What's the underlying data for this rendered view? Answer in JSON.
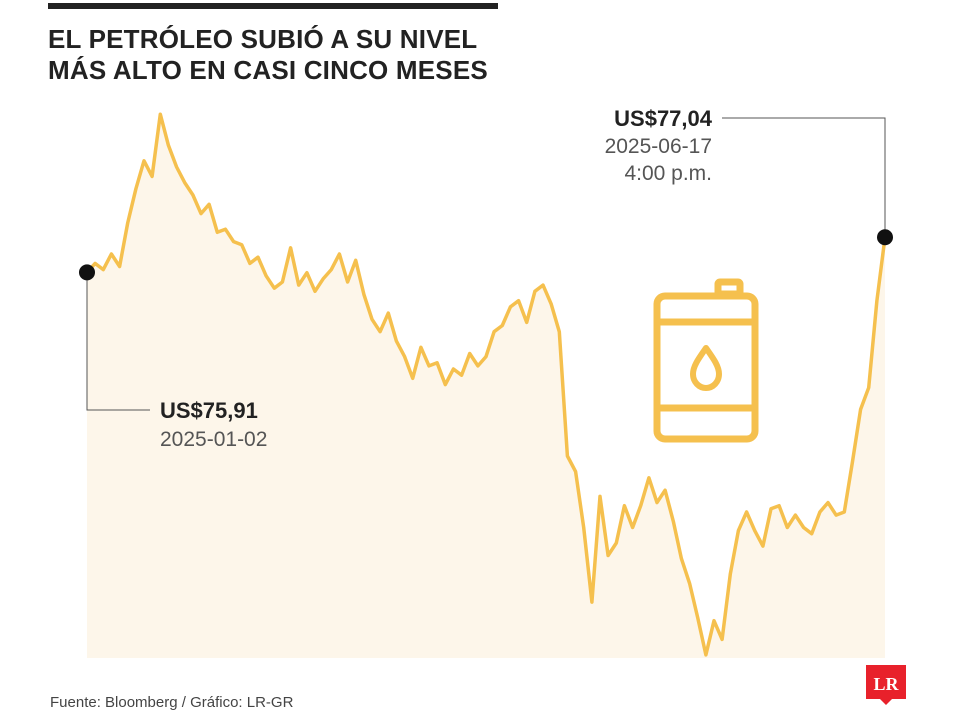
{
  "title": {
    "line1": "EL PETRÓLEO SUBIÓ A SU NIVEL",
    "line2": "MÁS ALTO EN CASI CINCO MESES"
  },
  "annotations": {
    "start": {
      "value": "US$75,91",
      "date": "2025-01-02"
    },
    "end": {
      "value": "US$77,04",
      "date": "2025-06-17",
      "time": "4:00 p.m."
    }
  },
  "footer": "Fuente: Bloomberg / Gráfico: LR-GR",
  "logo_text": "LR",
  "colors": {
    "line": "#F5C04E",
    "area": "#FDF6EA",
    "icon": "#F5C04E",
    "logo": "#E8212B",
    "text": "#222222"
  },
  "icon": "oil-barrel-icon",
  "chart_data": {
    "type": "area",
    "title": "EL PETRÓLEO SUBIÓ A SU NIVEL MÁS ALTO EN CASI CINCO MESES",
    "xlabel": "",
    "ylabel": "",
    "x_range": [
      "2025-01-02",
      "2025-06-17"
    ],
    "ylim": [
      63.5,
      81.2
    ],
    "grid": false,
    "legend": "none",
    "values": [
      75.91,
      76.2,
      76.0,
      76.5,
      76.1,
      77.5,
      78.6,
      79.5,
      79.0,
      81.0,
      80.0,
      79.3,
      78.8,
      78.4,
      77.8,
      78.1,
      77.2,
      77.3,
      76.9,
      76.8,
      76.2,
      76.4,
      75.8,
      75.4,
      75.6,
      76.7,
      75.5,
      75.9,
      75.3,
      75.7,
      76.0,
      76.5,
      75.6,
      76.3,
      75.2,
      74.4,
      74.0,
      74.6,
      73.7,
      73.2,
      72.5,
      73.5,
      72.9,
      73.0,
      72.3,
      72.8,
      72.6,
      73.3,
      72.9,
      73.2,
      74.0,
      74.2,
      74.8,
      75.0,
      74.3,
      75.3,
      75.5,
      74.9,
      74.0,
      70.0,
      69.5,
      67.7,
      65.3,
      68.7,
      66.8,
      67.2,
      68.4,
      67.7,
      68.4,
      69.3,
      68.5,
      68.9,
      67.9,
      66.7,
      65.9,
      64.8,
      63.6,
      64.7,
      64.1,
      66.2,
      67.6,
      68.2,
      67.6,
      67.1,
      68.3,
      68.4,
      67.7,
      68.1,
      67.7,
      67.5,
      68.2,
      68.5,
      68.1,
      68.2,
      69.8,
      71.5,
      72.2,
      75.0,
      77.04
    ]
  }
}
